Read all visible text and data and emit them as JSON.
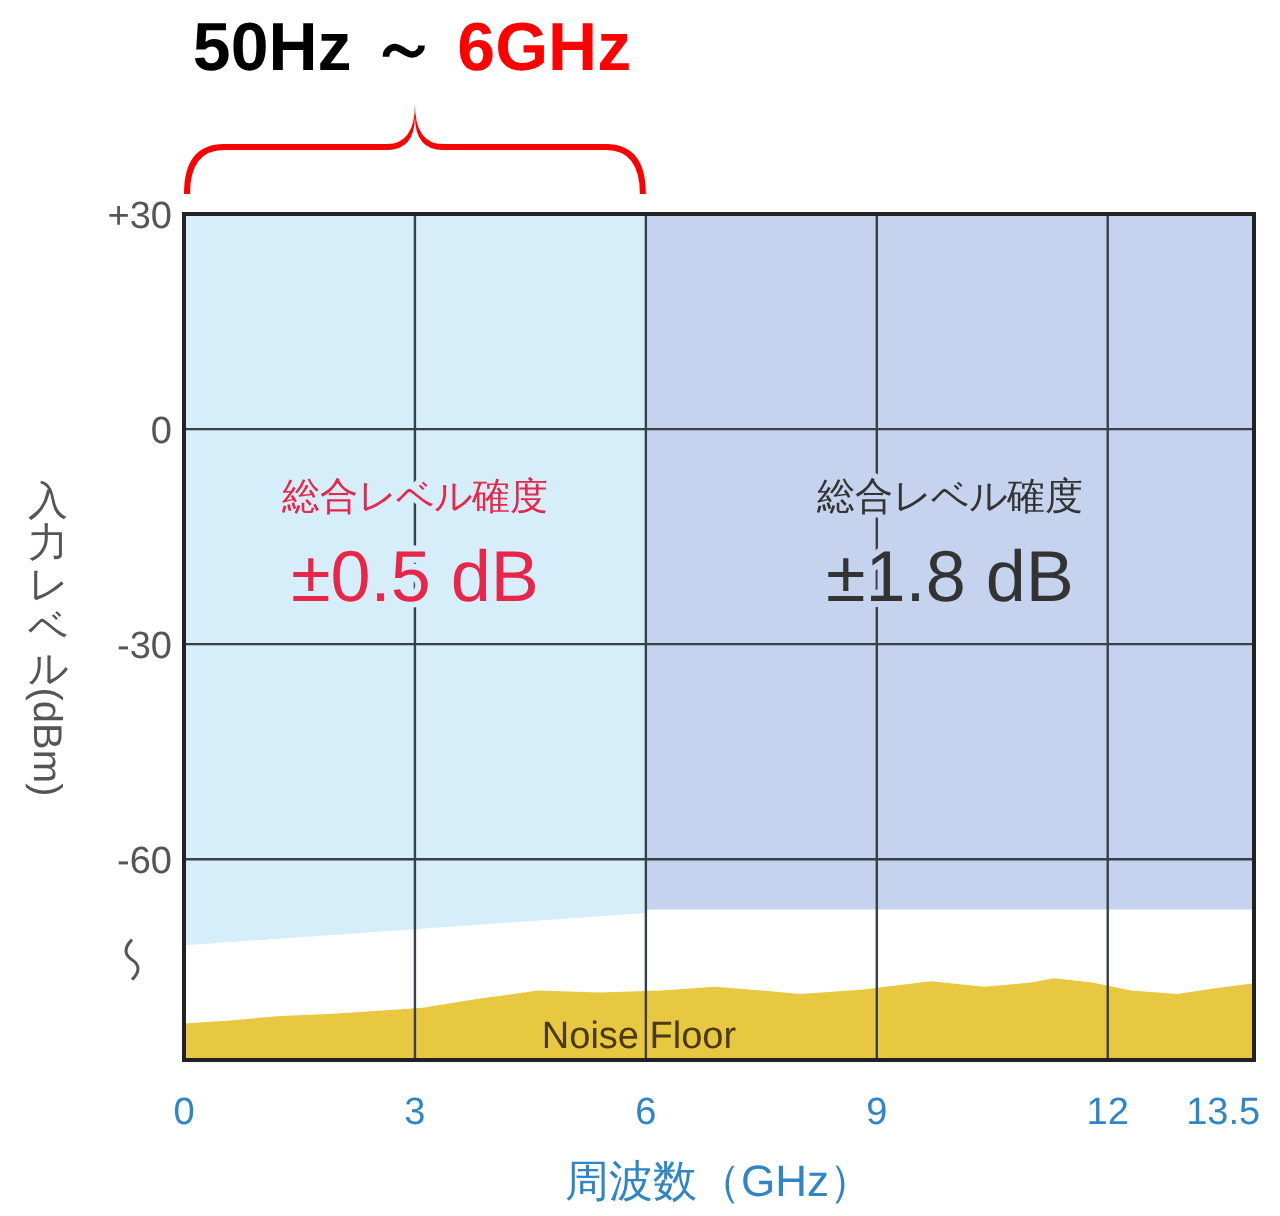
{
  "chart_data": {
    "type": "area",
    "title": "50Hz ～ 6GHz",
    "xlabel": "周波数（GHz）",
    "ylabel": "入力レベル (dBm)",
    "xlim": [
      0,
      13.9
    ],
    "ylim": [
      -88,
      30
    ],
    "xticks": [
      0,
      3,
      6,
      9,
      12,
      {
        "value": 13.5,
        "label": "13.5"
      }
    ],
    "yticks": [
      {
        "value": 30,
        "label": "+30"
      },
      0,
      -30,
      -60
    ],
    "grid": true,
    "bands": [
      {
        "axis": "x",
        "from": 0,
        "to": 6,
        "label": "総合レベル確度\n±0.5 dB",
        "color": "#d5eefa"
      },
      {
        "axis": "x",
        "from": 6,
        "to": 13.9,
        "label": "総合レベル確度\n±1.8 dB",
        "color": "#c5d3ee"
      }
    ],
    "series": [
      {
        "color": "#ffffff",
        "x": [
          0,
          6,
          6.001,
          13.9
        ],
        "values": [
          -72,
          -67.5,
          -67,
          -67
        ]
      },
      {
        "name": "Noise Floor",
        "color": "#e8c840",
        "x": [
          0,
          0.6,
          1.2,
          2,
          3.1,
          3.8,
          4.6,
          5.4,
          6.2,
          6.9,
          7.5,
          8,
          8.8,
          9.7,
          10.4,
          11,
          11.3,
          11.8,
          12.3,
          12.9,
          13.4,
          13.9
        ],
        "values": [
          -82.9,
          -82.5,
          -81.9,
          -81.5,
          -80.7,
          -79.5,
          -78.3,
          -78.6,
          -78.3,
          -77.8,
          -78.3,
          -78.8,
          -78.2,
          -77,
          -77.8,
          -77.2,
          -76.6,
          -77.2,
          -78.3,
          -78.8,
          -78,
          -77.3
        ]
      }
    ]
  }
}
